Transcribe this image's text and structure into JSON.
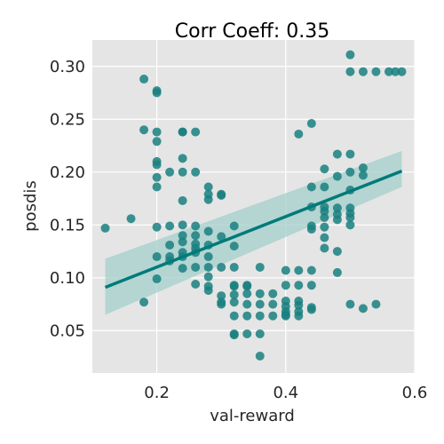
{
  "chart_data": {
    "type": "scatter",
    "title": "Corr Coeff: 0.35",
    "xlabel": "val-reward",
    "ylabel": "posdis",
    "xlim": [
      0.1,
      0.6
    ],
    "ylim": [
      0.01,
      0.325
    ],
    "xticks": [
      0.2,
      0.4,
      0.6
    ],
    "xtick_labels": [
      "0.2",
      "0.4",
      "0.6"
    ],
    "yticks": [
      0.05,
      0.1,
      0.15,
      0.2,
      0.25,
      0.3
    ],
    "ytick_labels": [
      "0.05",
      "0.10",
      "0.15",
      "0.20",
      "0.25",
      "0.30"
    ],
    "grid": true,
    "colors": {
      "background": "#e5e5e5",
      "grid": "#ffffff",
      "points": "#1a8080",
      "line": "#007a7a",
      "band": "#a3cfcb",
      "text": "#262626"
    },
    "points": [
      {
        "x": 0.12,
        "y": 0.147
      },
      {
        "x": 0.16,
        "y": 0.156
      },
      {
        "x": 0.18,
        "y": 0.288
      },
      {
        "x": 0.18,
        "y": 0.24
      },
      {
        "x": 0.18,
        "y": 0.077
      },
      {
        "x": 0.2,
        "y": 0.277
      },
      {
        "x": 0.2,
        "y": 0.275
      },
      {
        "x": 0.2,
        "y": 0.238
      },
      {
        "x": 0.2,
        "y": 0.229
      },
      {
        "x": 0.2,
        "y": 0.21
      },
      {
        "x": 0.2,
        "y": 0.207
      },
      {
        "x": 0.2,
        "y": 0.195
      },
      {
        "x": 0.2,
        "y": 0.186
      },
      {
        "x": 0.2,
        "y": 0.148
      },
      {
        "x": 0.2,
        "y": 0.12
      },
      {
        "x": 0.2,
        "y": 0.099
      },
      {
        "x": 0.22,
        "y": 0.2
      },
      {
        "x": 0.22,
        "y": 0.149
      },
      {
        "x": 0.22,
        "y": 0.131
      },
      {
        "x": 0.22,
        "y": 0.12
      },
      {
        "x": 0.22,
        "y": 0.116
      },
      {
        "x": 0.24,
        "y": 0.238
      },
      {
        "x": 0.24,
        "y": 0.238
      },
      {
        "x": 0.24,
        "y": 0.213
      },
      {
        "x": 0.24,
        "y": 0.2
      },
      {
        "x": 0.24,
        "y": 0.173
      },
      {
        "x": 0.24,
        "y": 0.15
      },
      {
        "x": 0.24,
        "y": 0.14
      },
      {
        "x": 0.24,
        "y": 0.134
      },
      {
        "x": 0.24,
        "y": 0.124
      },
      {
        "x": 0.24,
        "y": 0.12
      },
      {
        "x": 0.24,
        "y": 0.109
      },
      {
        "x": 0.26,
        "y": 0.238
      },
      {
        "x": 0.26,
        "y": 0.2
      },
      {
        "x": 0.26,
        "y": 0.149
      },
      {
        "x": 0.26,
        "y": 0.14
      },
      {
        "x": 0.26,
        "y": 0.132
      },
      {
        "x": 0.26,
        "y": 0.128
      },
      {
        "x": 0.26,
        "y": 0.124
      },
      {
        "x": 0.26,
        "y": 0.11
      },
      {
        "x": 0.26,
        "y": 0.094
      },
      {
        "x": 0.28,
        "y": 0.186
      },
      {
        "x": 0.28,
        "y": 0.179
      },
      {
        "x": 0.28,
        "y": 0.174
      },
      {
        "x": 0.28,
        "y": 0.144
      },
      {
        "x": 0.28,
        "y": 0.131
      },
      {
        "x": 0.28,
        "y": 0.12
      },
      {
        "x": 0.28,
        "y": 0.11
      },
      {
        "x": 0.28,
        "y": 0.101
      },
      {
        "x": 0.28,
        "y": 0.092
      },
      {
        "x": 0.28,
        "y": 0.088
      },
      {
        "x": 0.3,
        "y": 0.179
      },
      {
        "x": 0.3,
        "y": 0.178
      },
      {
        "x": 0.3,
        "y": 0.139
      },
      {
        "x": 0.3,
        "y": 0.11
      },
      {
        "x": 0.3,
        "y": 0.083
      },
      {
        "x": 0.3,
        "y": 0.077
      },
      {
        "x": 0.3,
        "y": 0.075
      },
      {
        "x": 0.32,
        "y": 0.149
      },
      {
        "x": 0.32,
        "y": 0.13
      },
      {
        "x": 0.32,
        "y": 0.11
      },
      {
        "x": 0.32,
        "y": 0.093
      },
      {
        "x": 0.32,
        "y": 0.092
      },
      {
        "x": 0.32,
        "y": 0.084
      },
      {
        "x": 0.32,
        "y": 0.077
      },
      {
        "x": 0.32,
        "y": 0.064
      },
      {
        "x": 0.32,
        "y": 0.047
      },
      {
        "x": 0.32,
        "y": 0.046
      },
      {
        "x": 0.34,
        "y": 0.093
      },
      {
        "x": 0.34,
        "y": 0.092
      },
      {
        "x": 0.34,
        "y": 0.085
      },
      {
        "x": 0.34,
        "y": 0.075
      },
      {
        "x": 0.34,
        "y": 0.064
      },
      {
        "x": 0.34,
        "y": 0.047
      },
      {
        "x": 0.36,
        "y": 0.11
      },
      {
        "x": 0.36,
        "y": 0.085
      },
      {
        "x": 0.36,
        "y": 0.075
      },
      {
        "x": 0.36,
        "y": 0.064
      },
      {
        "x": 0.36,
        "y": 0.047
      },
      {
        "x": 0.36,
        "y": 0.026
      },
      {
        "x": 0.38,
        "y": 0.085
      },
      {
        "x": 0.38,
        "y": 0.075
      },
      {
        "x": 0.38,
        "y": 0.064
      },
      {
        "x": 0.4,
        "y": 0.107
      },
      {
        "x": 0.4,
        "y": 0.093
      },
      {
        "x": 0.4,
        "y": 0.078
      },
      {
        "x": 0.4,
        "y": 0.073
      },
      {
        "x": 0.4,
        "y": 0.068
      },
      {
        "x": 0.4,
        "y": 0.065
      },
      {
        "x": 0.4,
        "y": 0.064
      },
      {
        "x": 0.42,
        "y": 0.236
      },
      {
        "x": 0.42,
        "y": 0.107
      },
      {
        "x": 0.42,
        "y": 0.093
      },
      {
        "x": 0.42,
        "y": 0.078
      },
      {
        "x": 0.42,
        "y": 0.074
      },
      {
        "x": 0.42,
        "y": 0.068
      },
      {
        "x": 0.42,
        "y": 0.064
      },
      {
        "x": 0.44,
        "y": 0.246
      },
      {
        "x": 0.44,
        "y": 0.186
      },
      {
        "x": 0.44,
        "y": 0.167
      },
      {
        "x": 0.44,
        "y": 0.149
      },
      {
        "x": 0.44,
        "y": 0.146
      },
      {
        "x": 0.44,
        "y": 0.107
      },
      {
        "x": 0.44,
        "y": 0.093
      },
      {
        "x": 0.44,
        "y": 0.072
      },
      {
        "x": 0.44,
        "y": 0.07
      },
      {
        "x": 0.46,
        "y": 0.203
      },
      {
        "x": 0.46,
        "y": 0.186
      },
      {
        "x": 0.46,
        "y": 0.167
      },
      {
        "x": 0.46,
        "y": 0.163
      },
      {
        "x": 0.46,
        "y": 0.157
      },
      {
        "x": 0.46,
        "y": 0.148
      },
      {
        "x": 0.46,
        "y": 0.138
      },
      {
        "x": 0.46,
        "y": 0.128
      },
      {
        "x": 0.48,
        "y": 0.217
      },
      {
        "x": 0.48,
        "y": 0.196
      },
      {
        "x": 0.48,
        "y": 0.166
      },
      {
        "x": 0.48,
        "y": 0.16
      },
      {
        "x": 0.48,
        "y": 0.155
      },
      {
        "x": 0.48,
        "y": 0.125
      },
      {
        "x": 0.48,
        "y": 0.105
      },
      {
        "x": 0.5,
        "y": 0.311
      },
      {
        "x": 0.5,
        "y": 0.295
      },
      {
        "x": 0.5,
        "y": 0.217
      },
      {
        "x": 0.5,
        "y": 0.2
      },
      {
        "x": 0.5,
        "y": 0.183
      },
      {
        "x": 0.5,
        "y": 0.166
      },
      {
        "x": 0.5,
        "y": 0.161
      },
      {
        "x": 0.5,
        "y": 0.157
      },
      {
        "x": 0.5,
        "y": 0.15
      },
      {
        "x": 0.5,
        "y": 0.075
      },
      {
        "x": 0.52,
        "y": 0.295
      },
      {
        "x": 0.52,
        "y": 0.204
      },
      {
        "x": 0.52,
        "y": 0.197
      },
      {
        "x": 0.52,
        "y": 0.071
      },
      {
        "x": 0.54,
        "y": 0.295
      },
      {
        "x": 0.54,
        "y": 0.075
      },
      {
        "x": 0.56,
        "y": 0.295
      },
      {
        "x": 0.57,
        "y": 0.295
      },
      {
        "x": 0.58,
        "y": 0.295
      }
    ],
    "regression": {
      "x": [
        0.12,
        0.58
      ],
      "y": [
        0.091,
        0.201
      ],
      "ci_lower": [
        0.065,
        0.186
      ],
      "ci_upper": [
        0.118,
        0.22
      ]
    }
  }
}
